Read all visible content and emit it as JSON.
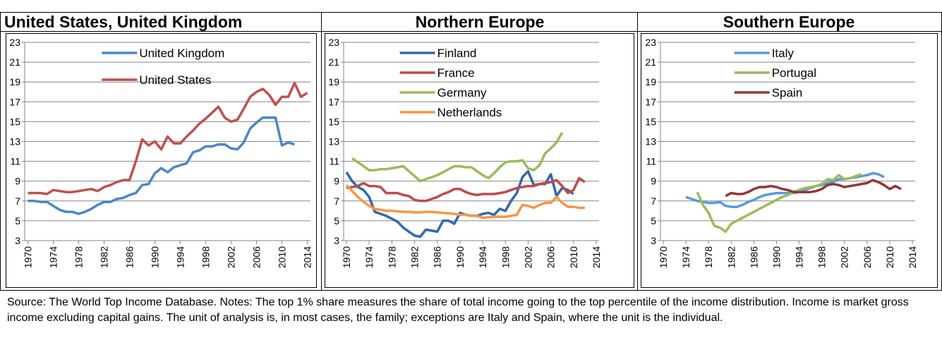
{
  "chart_data": [
    {
      "type": "line",
      "title": "United States, United Kingdom",
      "legend": "upper center",
      "grid": true,
      "ylim": [
        3,
        23
      ],
      "yticks": [
        3,
        5,
        7,
        9,
        11,
        13,
        15,
        17,
        19,
        21,
        23
      ],
      "xlim": [
        1969.5,
        2014.5
      ],
      "xticks": [
        1970,
        1974,
        1978,
        1982,
        1986,
        1990,
        1994,
        1998,
        2002,
        2006,
        2010,
        2014
      ],
      "x": [
        1970,
        1971,
        1972,
        1973,
        1974,
        1975,
        1976,
        1977,
        1978,
        1979,
        1980,
        1981,
        1982,
        1983,
        1984,
        1985,
        1986,
        1987,
        1988,
        1989,
        1990,
        1991,
        1992,
        1993,
        1994,
        1995,
        1996,
        1997,
        1998,
        1999,
        2000,
        2001,
        2002,
        2003,
        2004,
        2005,
        2006,
        2007,
        2008,
        2009,
        2010,
        2011,
        2012,
        2013,
        2014
      ],
      "series": [
        {
          "name": "United Kingdom",
          "color": "#4a86c8",
          "values": [
            7.0,
            7.0,
            6.9,
            6.9,
            6.5,
            6.1,
            5.9,
            5.9,
            5.7,
            5.9,
            6.2,
            6.6,
            6.9,
            6.9,
            7.2,
            7.3,
            7.6,
            7.8,
            8.6,
            8.7,
            9.8,
            10.3,
            9.9,
            10.4,
            10.6,
            10.8,
            11.9,
            12.1,
            12.5,
            12.5,
            12.7,
            12.7,
            12.3,
            12.2,
            12.9,
            14.3,
            14.9,
            15.4,
            15.4,
            15.4,
            12.6,
            12.9,
            12.7,
            null,
            null
          ]
        },
        {
          "name": "United States",
          "color": "#c0504d",
          "values": [
            7.8,
            7.8,
            7.8,
            7.7,
            8.1,
            8.0,
            7.9,
            7.9,
            8.0,
            8.1,
            8.2,
            8.0,
            8.4,
            8.6,
            8.9,
            9.1,
            9.1,
            11.0,
            13.2,
            12.6,
            13.0,
            12.2,
            13.5,
            12.8,
            12.8,
            13.5,
            14.1,
            14.8,
            15.3,
            15.9,
            16.5,
            15.4,
            15.0,
            15.2,
            16.3,
            17.5,
            18.0,
            18.3,
            17.7,
            16.7,
            17.5,
            17.5,
            18.9,
            17.5,
            17.9
          ]
        }
      ]
    },
    {
      "type": "line",
      "title": "Northern Europe",
      "legend": "upper left",
      "grid": true,
      "ylim": [
        3,
        23
      ],
      "yticks": [
        3,
        5,
        7,
        9,
        11,
        13,
        15,
        17,
        19,
        21,
        23
      ],
      "xlim": [
        1969.5,
        2014.5
      ],
      "xticks": [
        1970,
        1974,
        1978,
        1982,
        1986,
        1990,
        1994,
        1998,
        2002,
        2006,
        2010,
        2014
      ],
      "x": [
        1970,
        1971,
        1972,
        1973,
        1974,
        1975,
        1976,
        1977,
        1978,
        1979,
        1980,
        1981,
        1982,
        1983,
        1984,
        1985,
        1986,
        1987,
        1988,
        1989,
        1990,
        1991,
        1992,
        1993,
        1994,
        1995,
        1996,
        1997,
        1998,
        1999,
        2000,
        2001,
        2002,
        2003,
        2004,
        2005,
        2006,
        2007,
        2008,
        2009,
        2010,
        2011,
        2012,
        2013,
        2014
      ],
      "series": [
        {
          "name": "Finland",
          "color": "#2f6aab",
          "values": [
            9.9,
            9.0,
            8.4,
            8.1,
            7.4,
            5.9,
            5.7,
            5.5,
            5.2,
            4.9,
            4.3,
            3.9,
            3.5,
            3.4,
            4.1,
            4.0,
            3.9,
            5.0,
            5.0,
            4.7,
            5.8,
            5.6,
            5.5,
            5.5,
            5.7,
            5.8,
            5.6,
            6.2,
            6.0,
            7.0,
            7.8,
            9.4,
            10.0,
            8.6,
            8.7,
            8.7,
            9.7,
            7.5,
            8.3,
            8.1,
            7.7,
            null,
            null,
            null,
            null
          ]
        },
        {
          "name": "France",
          "color": "#be4b48",
          "values": [
            8.3,
            8.4,
            8.5,
            8.8,
            8.5,
            8.5,
            8.4,
            7.8,
            7.8,
            7.8,
            7.6,
            7.5,
            7.1,
            7.0,
            7.0,
            7.2,
            7.4,
            7.7,
            7.9,
            8.2,
            8.2,
            7.9,
            7.7,
            7.6,
            7.7,
            7.7,
            7.7,
            7.8,
            7.9,
            8.1,
            8.3,
            8.4,
            8.5,
            8.5,
            8.7,
            8.8,
            8.9,
            9.1,
            8.5,
            7.8,
            8.1,
            9.3,
            8.9,
            null,
            null
          ]
        },
        {
          "name": "Germany",
          "color": "#9bbb59",
          "values": [
            null,
            11.3,
            10.9,
            10.5,
            10.1,
            10.1,
            10.2,
            10.2,
            10.3,
            10.4,
            10.5,
            10.0,
            9.5,
            9.0,
            9.2,
            9.4,
            9.6,
            9.9,
            10.2,
            10.5,
            10.5,
            10.4,
            10.4,
            10.0,
            9.6,
            9.3,
            9.8,
            10.4,
            10.9,
            11.0,
            11.0,
            11.1,
            10.3,
            10.1,
            10.6,
            11.8,
            12.3,
            12.9,
            13.9,
            null,
            null,
            null,
            null,
            null,
            null
          ]
        },
        {
          "name": "Netherlands",
          "color": "#f79646",
          "values": [
            8.6,
            8.0,
            7.4,
            6.9,
            6.5,
            6.2,
            6.1,
            6.0,
            6.0,
            5.95,
            5.9,
            5.9,
            5.85,
            5.85,
            5.9,
            5.9,
            5.85,
            5.8,
            5.75,
            5.7,
            5.6,
            5.6,
            5.5,
            5.5,
            5.3,
            5.35,
            5.4,
            5.4,
            5.4,
            5.5,
            5.6,
            6.6,
            6.5,
            6.3,
            6.6,
            6.8,
            6.8,
            7.4,
            6.8,
            6.4,
            6.4,
            6.3,
            6.3,
            null,
            null
          ]
        }
      ]
    },
    {
      "type": "line",
      "title": "Southern Europe",
      "legend": "upper right",
      "grid": true,
      "ylim": [
        3,
        23
      ],
      "yticks": [
        3,
        5,
        7,
        9,
        11,
        13,
        15,
        17,
        19,
        21,
        23
      ],
      "xlim": [
        1969.5,
        2014.5
      ],
      "xticks": [
        1970,
        1974,
        1978,
        1982,
        1986,
        1990,
        1994,
        1998,
        2002,
        2006,
        2010,
        2014
      ],
      "x": [
        1970,
        1971,
        1972,
        1973,
        1974,
        1975,
        1976,
        1977,
        1978,
        1979,
        1980,
        1981,
        1982,
        1983,
        1984,
        1985,
        1986,
        1987,
        1988,
        1989,
        1990,
        1991,
        1992,
        1993,
        1994,
        1995,
        1996,
        1997,
        1998,
        1999,
        2000,
        2001,
        2002,
        2003,
        2004,
        2005,
        2006,
        2007,
        2008,
        2009,
        2010,
        2011,
        2012,
        2013,
        2014
      ],
      "series": [
        {
          "name": "Italy",
          "color": "#559bdc",
          "values": [
            null,
            null,
            null,
            null,
            7.4,
            7.2,
            7.0,
            6.9,
            6.8,
            6.8,
            6.9,
            6.5,
            6.4,
            6.4,
            6.6,
            6.9,
            7.1,
            7.4,
            7.6,
            7.7,
            7.8,
            7.8,
            7.8,
            7.8,
            7.9,
            8.1,
            8.3,
            8.5,
            8.6,
            8.8,
            8.9,
            9.2,
            9.2,
            9.3,
            9.4,
            9.5,
            9.6,
            9.8,
            9.7,
            9.4,
            null,
            null,
            null,
            null,
            null
          ]
        },
        {
          "name": "Portugal",
          "color": "#9bbb59",
          "values": [
            null,
            null,
            null,
            null,
            null,
            null,
            7.9,
            6.6,
            5.8,
            4.5,
            4.3,
            3.9,
            4.7,
            5.0,
            5.3,
            5.6,
            5.9,
            6.2,
            6.5,
            6.8,
            7.1,
            7.4,
            7.6,
            7.9,
            8.1,
            8.3,
            8.4,
            8.5,
            8.7,
            9.2,
            9.1,
            9.6,
            9.2,
            9.3,
            9.5,
            9.7,
            null,
            null,
            null,
            null,
            null,
            null,
            null,
            null,
            null
          ]
        },
        {
          "name": "Spain",
          "color": "#953735",
          "values": [
            null,
            null,
            null,
            null,
            null,
            null,
            null,
            null,
            null,
            null,
            null,
            7.5,
            7.8,
            7.7,
            7.7,
            7.9,
            8.2,
            8.4,
            8.4,
            8.5,
            8.4,
            8.2,
            8.1,
            7.9,
            7.9,
            7.9,
            7.9,
            8.0,
            8.2,
            8.6,
            8.7,
            8.6,
            8.4,
            8.5,
            8.6,
            8.7,
            8.8,
            9.1,
            8.9,
            8.6,
            8.2,
            8.5,
            8.2,
            null,
            null
          ]
        }
      ]
    }
  ],
  "note": "Source: The World Top Income Database. Notes: The top 1% share measures the share of total income going to the top percentile of the income distribution. Income is market gross income excluding capital gains. The unit of analysis is, in most cases, the family; exceptions are Italy and Spain, where the unit is the individual."
}
